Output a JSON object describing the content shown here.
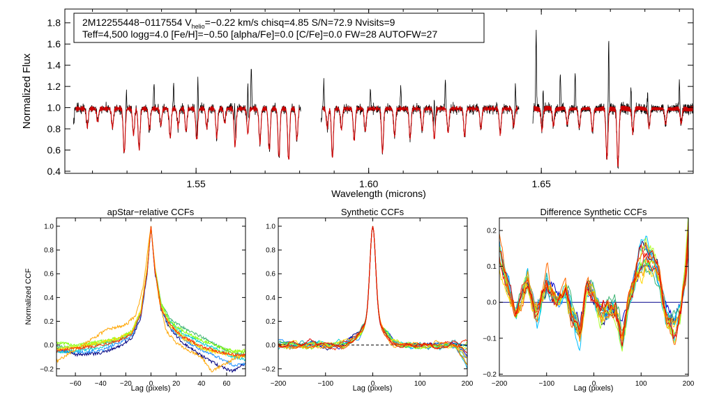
{
  "figure": {
    "info_line1": {
      "star_id": "2M12255448−0117554",
      "v_prefix": "V",
      "v_sub": "helio",
      "v_rest": "=−0.22 km/s  chisq=4.85  S/N=72.9  Nvisits=9"
    },
    "info_line2": "Teff=4,500 logg=4.0 [Fe/H]=−0.50 [alpha/Fe]=0.0 [C/Fe]=0.0 FW=28 AUTOFW=27"
  },
  "colors": {
    "observed": "#000000",
    "model": "#cc0000",
    "zero_line": "#00008b",
    "ccf_palette": [
      "#000080",
      "#0000cd",
      "#1e90ff",
      "#00bfff",
      "#00ced1",
      "#20b2aa",
      "#3cb371",
      "#7fff00",
      "#adff2f",
      "#ffd700",
      "#ffa500",
      "#ff6a00",
      "#ff3000",
      "#dd0000"
    ]
  },
  "chart_data": [
    {
      "id": "spectrum",
      "type": "line",
      "title": "",
      "xlabel": "Wavelength (microns)",
      "ylabel": "Normalized Flux",
      "xlim": [
        1.512,
        1.694
      ],
      "ylim": [
        0.38,
        1.93
      ],
      "xticks": [
        1.55,
        1.6,
        1.65
      ],
      "xtick_labels": [
        "1.55",
        "1.60",
        "1.65"
      ],
      "xminor_step": 0.01,
      "yticks": [
        0.4,
        0.6,
        0.8,
        1.0,
        1.2,
        1.4,
        1.6,
        1.8
      ],
      "ytick_labels": [
        "0.4",
        "0.6",
        "0.8",
        "1.0",
        "1.2",
        "1.4",
        "1.6",
        "1.8"
      ],
      "chip_ranges": [
        [
          1.5145,
          1.5803
        ],
        [
          1.5862,
          1.6435
        ],
        [
          1.6475,
          1.6945
        ]
      ],
      "continuum": 0.99,
      "absorption_lines": [
        [
          1.5185,
          0.17
        ],
        [
          1.5215,
          0.12
        ],
        [
          1.5258,
          0.18
        ],
        [
          1.5292,
          0.43
        ],
        [
          1.5319,
          0.25
        ],
        [
          1.5335,
          0.39
        ],
        [
          1.5365,
          0.2
        ],
        [
          1.5398,
          0.16
        ],
        [
          1.5425,
          0.28
        ],
        [
          1.5448,
          0.17
        ],
        [
          1.5471,
          0.22
        ],
        [
          1.5502,
          0.3
        ],
        [
          1.5531,
          0.18
        ],
        [
          1.556,
          0.27
        ],
        [
          1.5583,
          0.14
        ],
        [
          1.5613,
          0.36
        ],
        [
          1.565,
          0.24
        ],
        [
          1.5685,
          0.33
        ],
        [
          1.5712,
          0.4
        ],
        [
          1.574,
          0.47
        ],
        [
          1.5768,
          0.5
        ],
        [
          1.5792,
          0.3
        ],
        [
          1.588,
          0.18
        ],
        [
          1.5895,
          0.47
        ],
        [
          1.5921,
          0.2
        ],
        [
          1.5958,
          0.31
        ],
        [
          1.599,
          0.22
        ],
        [
          1.604,
          0.42
        ],
        [
          1.6075,
          0.26
        ],
        [
          1.612,
          0.28
        ],
        [
          1.6155,
          0.21
        ],
        [
          1.619,
          0.29
        ],
        [
          1.623,
          0.23
        ],
        [
          1.6278,
          0.27
        ],
        [
          1.6325,
          0.19
        ],
        [
          1.6381,
          0.24
        ],
        [
          1.642,
          0.17
        ],
        [
          1.6502,
          0.2
        ],
        [
          1.6535,
          0.16
        ],
        [
          1.6575,
          0.15
        ],
        [
          1.661,
          0.18
        ],
        [
          1.6648,
          0.22
        ],
        [
          1.669,
          0.48
        ],
        [
          1.6722,
          0.55
        ],
        [
          1.6765,
          0.23
        ],
        [
          1.6812,
          0.18
        ],
        [
          1.686,
          0.15
        ],
        [
          1.6905,
          0.14
        ]
      ],
      "emission_spikes": [
        [
          1.5298,
          1.19
        ],
        [
          1.5378,
          1.25
        ],
        [
          1.5435,
          1.22
        ],
        [
          1.5505,
          1.43
        ],
        [
          1.5612,
          1.36
        ],
        [
          1.565,
          1.45
        ],
        [
          1.566,
          1.4
        ],
        [
          1.587,
          1.22
        ],
        [
          1.6005,
          1.18
        ],
        [
          1.6093,
          1.2
        ],
        [
          1.619,
          1.36
        ],
        [
          1.6222,
          1.26
        ],
        [
          1.6425,
          1.25
        ],
        [
          1.6485,
          1.73
        ],
        [
          1.6505,
          1.27
        ],
        [
          1.6555,
          1.32
        ],
        [
          1.6598,
          1.33
        ],
        [
          1.6695,
          1.73
        ],
        [
          1.676,
          1.23
        ],
        [
          1.6808,
          1.2
        ],
        [
          1.69,
          1.28
        ]
      ]
    },
    {
      "id": "apstar_ccf",
      "type": "line",
      "title": "apStar−relative CCFs",
      "xlabel": "Lag (pixels)",
      "ylabel": "Normalized CCF",
      "xlim": [
        -75,
        75
      ],
      "ylim": [
        -0.26,
        1.07
      ],
      "xticks": [
        -60,
        -40,
        -20,
        0,
        20,
        40,
        60
      ],
      "xtick_labels": [
        "−60",
        "−40",
        "−20",
        "0",
        "20",
        "40",
        "60"
      ],
      "yticks": [
        -0.2,
        0.0,
        0.2,
        0.4,
        0.6,
        0.8,
        1.0
      ],
      "ytick_labels": [
        "−0.2",
        "0.0",
        "0.2",
        "0.4",
        "0.6",
        "0.8",
        "1.0"
      ],
      "zero_line": false,
      "series": [
        {
          "name": "visit 1",
          "color_index": 0,
          "lag": [
            -75,
            -60,
            -40,
            -25,
            -15,
            -8,
            -3,
            0,
            3,
            8,
            15,
            25,
            40,
            55,
            65,
            75
          ],
          "ccf": [
            -0.02,
            -0.08,
            -0.07,
            -0.01,
            0.06,
            0.23,
            0.6,
            1.0,
            0.62,
            0.29,
            0.14,
            0.02,
            -0.09,
            -0.18,
            -0.22,
            -0.15
          ]
        },
        {
          "name": "visit 2",
          "color_index": 2,
          "lag": [
            -75,
            -60,
            -40,
            -25,
            -15,
            -8,
            -3,
            0,
            3,
            8,
            15,
            25,
            40,
            55,
            65,
            75
          ],
          "ccf": [
            -0.05,
            -0.06,
            -0.05,
            0.02,
            0.08,
            0.25,
            0.62,
            1.0,
            0.64,
            0.3,
            0.15,
            0.05,
            -0.04,
            -0.11,
            -0.17,
            -0.16
          ]
        },
        {
          "name": "visit 3",
          "color_index": 4,
          "lag": [
            -75,
            -60,
            -40,
            -25,
            -15,
            -8,
            -3,
            0,
            3,
            8,
            15,
            25,
            40,
            55,
            65,
            75
          ],
          "ccf": [
            -0.06,
            -0.05,
            -0.02,
            0.04,
            0.11,
            0.27,
            0.63,
            1.0,
            0.65,
            0.33,
            0.2,
            0.1,
            0.02,
            -0.05,
            -0.1,
            -0.12
          ]
        },
        {
          "name": "visit 4",
          "color_index": 6,
          "lag": [
            -75,
            -60,
            -40,
            -25,
            -15,
            -8,
            -3,
            0,
            3,
            8,
            15,
            25,
            40,
            55,
            65,
            75
          ],
          "ccf": [
            -0.01,
            -0.03,
            0.01,
            0.05,
            0.1,
            0.28,
            0.64,
            1.0,
            0.66,
            0.35,
            0.22,
            0.15,
            0.07,
            -0.02,
            -0.06,
            -0.09
          ]
        },
        {
          "name": "visit 5",
          "color_index": 7,
          "lag": [
            -75,
            -60,
            -40,
            -25,
            -15,
            -8,
            -3,
            0,
            3,
            8,
            15,
            25,
            40,
            55,
            65,
            75
          ],
          "ccf": [
            0.02,
            0.0,
            0.03,
            0.06,
            0.12,
            0.29,
            0.65,
            1.0,
            0.66,
            0.35,
            0.2,
            0.12,
            0.04,
            -0.02,
            -0.05,
            -0.06
          ]
        },
        {
          "name": "visit 6",
          "color_index": 8,
          "lag": [
            -75,
            -60,
            -40,
            -25,
            -15,
            -8,
            -3,
            0,
            3,
            8,
            15,
            25,
            40,
            55,
            65,
            75
          ],
          "ccf": [
            -0.03,
            -0.01,
            0.02,
            0.05,
            0.11,
            0.28,
            0.64,
            1.0,
            0.65,
            0.34,
            0.18,
            0.08,
            -0.02,
            -0.06,
            -0.06,
            -0.04
          ]
        },
        {
          "name": "visit 7",
          "color_index": 9,
          "lag": [
            -75,
            -60,
            -40,
            -25,
            -15,
            -8,
            -3,
            0,
            3,
            8,
            15,
            25,
            40,
            55,
            65,
            75
          ],
          "ccf": [
            -0.04,
            -0.02,
            0.02,
            0.06,
            0.12,
            0.3,
            0.65,
            1.0,
            0.65,
            0.32,
            0.16,
            0.06,
            -0.03,
            -0.07,
            -0.09,
            -0.1
          ]
        },
        {
          "name": "visit 8",
          "color_index": 10,
          "lag": [
            -75,
            -65,
            -50,
            -35,
            -20,
            -12,
            -6,
            -2,
            0,
            2,
            6,
            12,
            20,
            30,
            40,
            48,
            55,
            65,
            75
          ],
          "ccf": [
            -0.14,
            -0.07,
            0.03,
            0.13,
            0.17,
            0.25,
            0.5,
            0.85,
            1.0,
            0.78,
            0.4,
            0.12,
            0.02,
            -0.05,
            -0.1,
            -0.22,
            -0.18,
            -0.12,
            -0.08
          ]
        },
        {
          "name": "visit 9",
          "color_index": 12,
          "lag": [
            -75,
            -60,
            -40,
            -25,
            -15,
            -8,
            -3,
            0,
            3,
            8,
            15,
            25,
            40,
            55,
            65,
            75
          ],
          "ccf": [
            -0.05,
            -0.03,
            0.0,
            0.04,
            0.09,
            0.26,
            0.62,
            1.0,
            0.63,
            0.31,
            0.17,
            0.07,
            -0.01,
            -0.06,
            -0.08,
            -0.09
          ]
        }
      ]
    },
    {
      "id": "synthetic_ccf",
      "type": "line",
      "title": "Synthetic CCFs",
      "xlabel": "Lag (pixels)",
      "ylabel": "",
      "xlim": [
        -200,
        200
      ],
      "ylim": [
        -0.26,
        1.07
      ],
      "xticks": [
        -200,
        -100,
        0,
        100,
        200
      ],
      "xtick_labels": [
        "−200",
        "−100",
        "0",
        "100",
        "200"
      ],
      "yticks": [
        -0.2,
        0.0,
        0.2,
        0.4,
        0.6,
        0.8,
        1.0
      ],
      "ytick_labels": [
        "−0.2",
        "0.0",
        "0.2",
        "0.4",
        "0.6",
        "0.8",
        "1.0"
      ],
      "zero_line": "dashed",
      "series_count": 14,
      "peak_halfwidth_lag": 6,
      "wing_halfwidth_lag": 22,
      "noise_amplitude": 0.045,
      "tail_dip_at_200": -0.2
    },
    {
      "id": "difference_ccf",
      "type": "line",
      "title": "Difference Synthetic CCFs",
      "xlabel": "Lag (pixels)",
      "ylabel": "",
      "xlim": [
        -200,
        200
      ],
      "ylim": [
        -0.205,
        0.235
      ],
      "xticks": [
        -200,
        -100,
        0,
        100,
        200
      ],
      "xtick_labels": [
        "−200",
        "−100",
        "0",
        "100",
        "200"
      ],
      "yticks": [
        -0.2,
        -0.1,
        0.0,
        0.1,
        0.2
      ],
      "ytick_labels": [
        "−0.2",
        "−0.1",
        "0.0",
        "0.1",
        "0.2"
      ],
      "zero_line": "solid",
      "series_count": 14,
      "envelope": {
        "lag": [
          -200,
          -185,
          -165,
          -140,
          -120,
          -100,
          -80,
          -60,
          -45,
          -30,
          -15,
          0,
          15,
          30,
          45,
          60,
          75,
          95,
          110,
          125,
          140,
          155,
          170,
          185,
          195,
          200
        ],
        "value": [
          0.13,
          0.06,
          -0.03,
          0.05,
          -0.03,
          0.06,
          -0.01,
          0.04,
          -0.04,
          -0.09,
          0.04,
          0.02,
          -0.03,
          -0.01,
          -0.02,
          -0.1,
          0.01,
          0.1,
          0.13,
          0.12,
          0.06,
          -0.05,
          -0.08,
          -0.02,
          0.1,
          0.2
        ]
      },
      "noise_amplitude": 0.04
    }
  ]
}
